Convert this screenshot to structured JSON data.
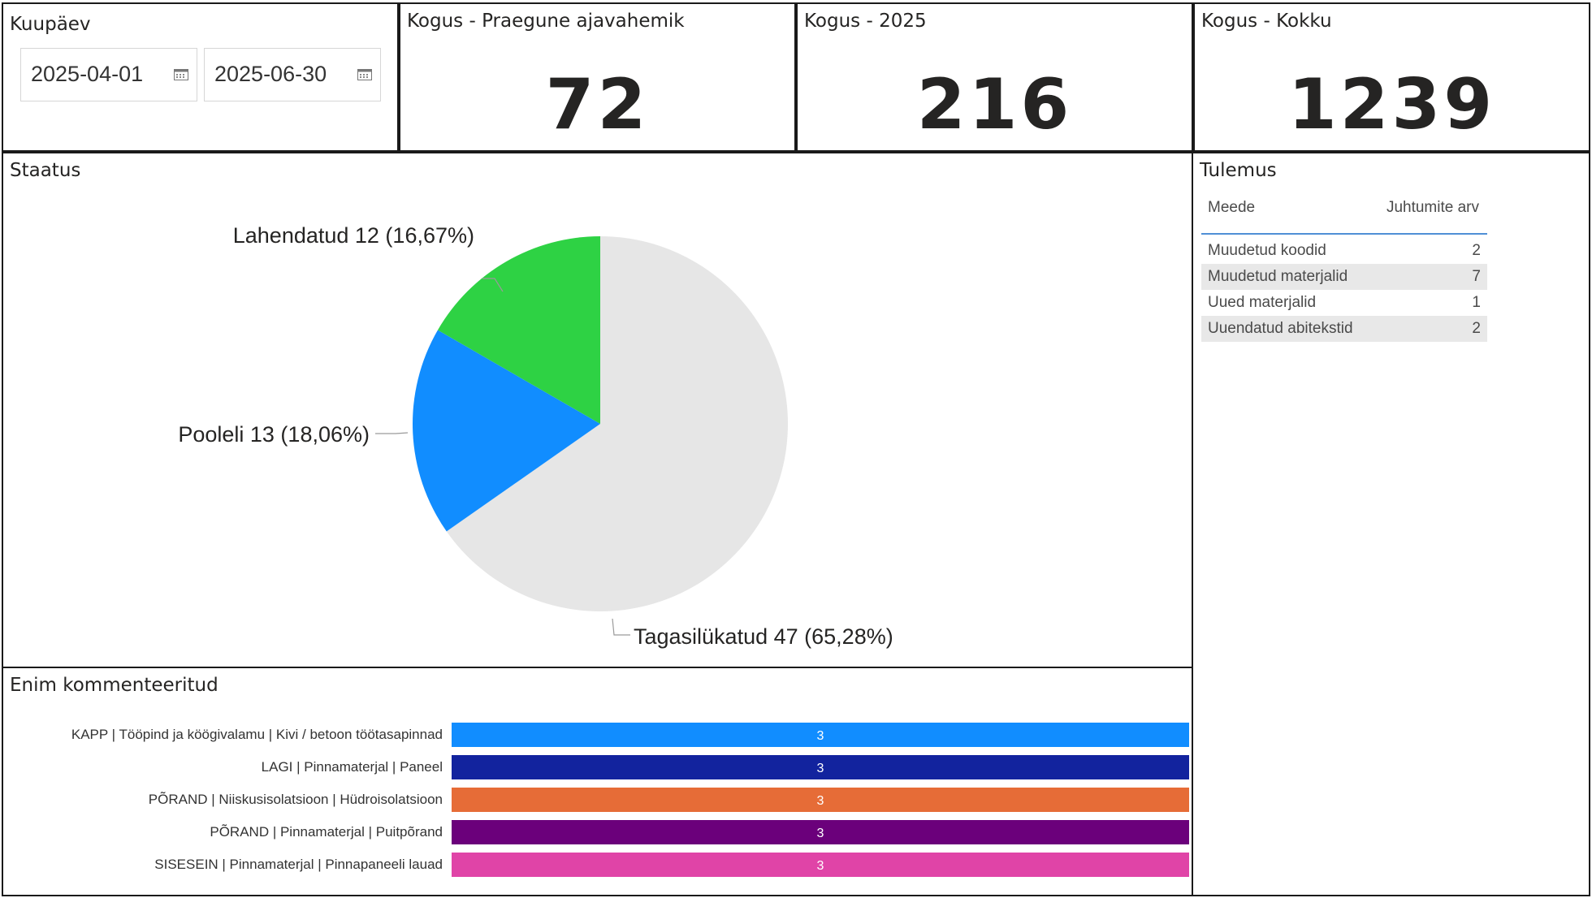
{
  "date_filter": {
    "title": "Kuupäev",
    "start": "2025-04-01",
    "end": "2025-06-30"
  },
  "kpis": [
    {
      "title": "Kogus - Praegune ajavahemik",
      "value": "72"
    },
    {
      "title": "Kogus - 2025",
      "value": "216"
    },
    {
      "title": "Kogus - Kokku",
      "value": "1239"
    }
  ],
  "status_chart": {
    "title": "Staatus",
    "labels": [
      "Tagasilükatud 47 (65,28%)",
      "Pooleli 13 (18,06%)",
      "Lahendatud 12 (16,67%)"
    ]
  },
  "results_table": {
    "title": "Tulemus",
    "col_measure": "Meede",
    "col_count": "Juhtumite arv",
    "rows": [
      {
        "name": "Muudetud koodid",
        "value": "2"
      },
      {
        "name": "Muudetud materjalid",
        "value": "7"
      },
      {
        "name": "Uued materjalid",
        "value": "1"
      },
      {
        "name": "Uuendatud abitekstid",
        "value": "2"
      }
    ]
  },
  "comments_chart": {
    "title": "Enim kommenteeritud"
  },
  "chart_data": [
    {
      "type": "pie",
      "title": "Staatus",
      "categories": [
        "Tagasilükatud",
        "Pooleli",
        "Lahendatud"
      ],
      "values": [
        47,
        13,
        12
      ],
      "percents": [
        "65,28%",
        "18,06%",
        "16,67%"
      ],
      "colors": [
        "#e6e6e6",
        "#118dff",
        "#2ed244"
      ]
    },
    {
      "type": "bar",
      "orientation": "horizontal",
      "title": "Enim kommenteeritud",
      "categories": [
        "KAPP | Tööpind ja köögivalamu | Kivi / betoon töötasapinnad",
        "LAGI | Pinnamaterjal | Paneel",
        "PÕRAND | Niiskusisolatsioon | Hüdroisolatsioon",
        "PÕRAND | Pinnamaterjal | Puitpõrand",
        "SISESEIN | Pinnamaterjal | Pinnapaneeli lauad"
      ],
      "values": [
        3,
        3,
        3,
        3,
        3
      ],
      "xlim": [
        0,
        3
      ],
      "colors": [
        "#118dff",
        "#12239e",
        "#e66c37",
        "#6b007b",
        "#e044a7"
      ]
    }
  ]
}
